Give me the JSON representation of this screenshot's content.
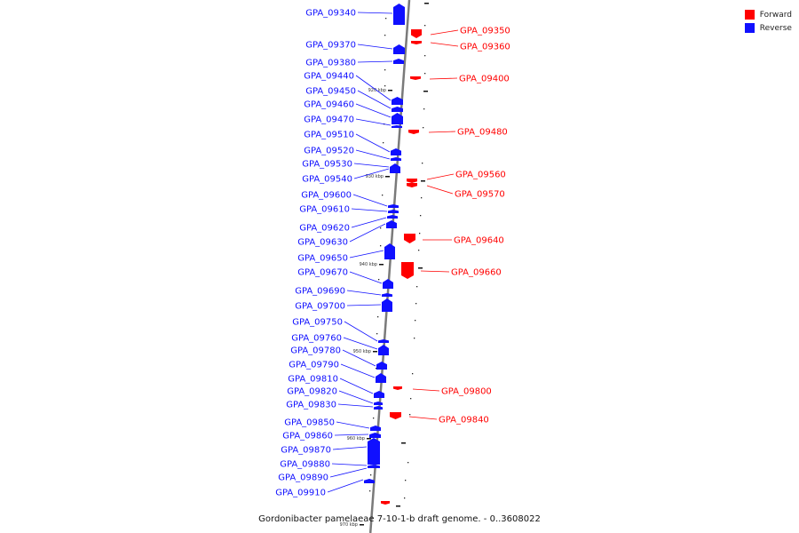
{
  "title": "Gordonibacter pamelaeae 7-10-1-b draft genome. - 0..3608022",
  "colors": {
    "forward": "#ff0000",
    "reverse": "#1010ff",
    "axis": "#7a7a7a"
  },
  "legend": [
    {
      "label": "Forward",
      "color": "#ff0000"
    },
    {
      "label": "Reverse",
      "color": "#1010ff"
    }
  ],
  "scale_labels": [
    "920 kbp",
    "930 kbp",
    "940 kbp",
    "950 kbp",
    "960 kbp",
    "970 kbp"
  ],
  "reverse_genes": [
    "GPA_09340",
    "GPA_09370",
    "GPA_09380",
    "GPA_09440",
    "GPA_09450",
    "GPA_09460",
    "GPA_09470",
    "GPA_09510",
    "GPA_09520",
    "GPA_09530",
    "GPA_09540",
    "GPA_09600",
    "GPA_09610",
    "GPA_09620",
    "GPA_09630",
    "GPA_09650",
    "GPA_09670",
    "GPA_09690",
    "GPA_09700",
    "GPA_09750",
    "GPA_09760",
    "GPA_09780",
    "GPA_09790",
    "GPA_09810",
    "GPA_09820",
    "GPA_09830",
    "GPA_09850",
    "GPA_09860",
    "GPA_09870",
    "GPA_09880",
    "GPA_09890",
    "GPA_09910"
  ],
  "forward_genes": [
    "GPA_09350",
    "GPA_09360",
    "GPA_09400",
    "GPA_09480",
    "GPA_09560",
    "GPA_09570",
    "GPA_09640",
    "GPA_09660",
    "GPA_09800",
    "GPA_09840"
  ]
}
